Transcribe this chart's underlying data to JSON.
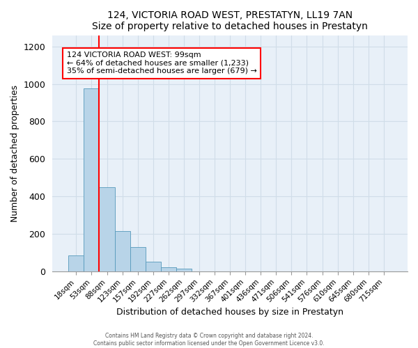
{
  "title": "124, VICTORIA ROAD WEST, PRESTATYN, LL19 7AN",
  "subtitle": "Size of property relative to detached houses in Prestatyn",
  "xlabel": "Distribution of detached houses by size in Prestatyn",
  "ylabel": "Number of detached properties",
  "bar_labels": [
    "18sqm",
    "53sqm",
    "88sqm",
    "123sqm",
    "157sqm",
    "192sqm",
    "227sqm",
    "262sqm",
    "297sqm",
    "332sqm",
    "367sqm",
    "401sqm",
    "436sqm",
    "471sqm",
    "506sqm",
    "541sqm",
    "576sqm",
    "610sqm",
    "645sqm",
    "680sqm",
    "715sqm"
  ],
  "bar_values": [
    85,
    975,
    450,
    215,
    130,
    50,
    20,
    15,
    0,
    0,
    0,
    0,
    0,
    0,
    0,
    0,
    0,
    0,
    0,
    0,
    0
  ],
  "bar_color": "#b8d4e8",
  "bar_edge_color": "#5599bb",
  "red_line_index": 1,
  "ylim": [
    0,
    1260
  ],
  "yticks": [
    0,
    200,
    400,
    600,
    800,
    1000,
    1200
  ],
  "annotation_line1": "124 VICTORIA ROAD WEST: 99sqm",
  "annotation_line2": "← 64% of detached houses are smaller (1,233)",
  "annotation_line3": "35% of semi-detached houses are larger (679) →",
  "footer1": "Contains HM Land Registry data © Crown copyright and database right 2024.",
  "footer2": "Contains public sector information licensed under the Open Government Licence v3.0.",
  "grid_color": "#d0dde8",
  "bg_color": "#e8f0f8"
}
